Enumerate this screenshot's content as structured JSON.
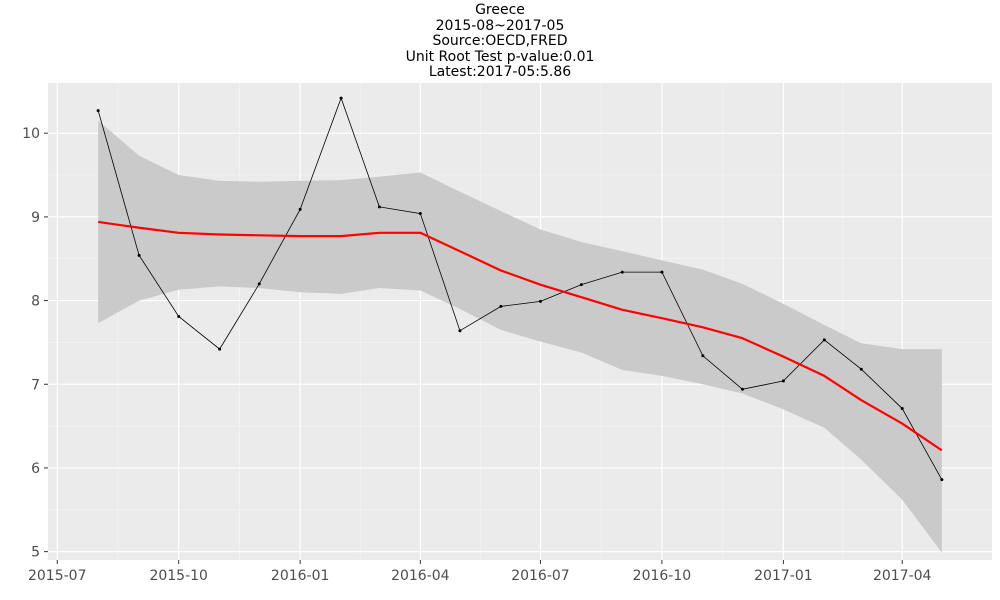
{
  "chart_data": {
    "type": "line",
    "title_lines": [
      "Greece",
      "2015-08~2017-05",
      "Source:OECD,FRED",
      "Unit Root Test p-value:0.01",
      "Latest:2017-05:5.86"
    ],
    "xlabel": "",
    "ylabel": "",
    "x_ticks": [
      "2015-07",
      "2015-10",
      "2016-01",
      "2016-04",
      "2016-07",
      "2016-10",
      "2017-01",
      "2017-04"
    ],
    "y_ticks": [
      5,
      6,
      7,
      8,
      9,
      10
    ],
    "xlim": [
      "2015-06-24",
      "2017-06-08"
    ],
    "ylim": [
      4.9,
      10.6
    ],
    "grid": true,
    "series": [
      {
        "kind": "observed",
        "color": "#000000",
        "points": [
          {
            "x": "2015-08-01",
            "y": 10.27
          },
          {
            "x": "2015-09-01",
            "y": 8.54
          },
          {
            "x": "2015-10-01",
            "y": 7.81
          },
          {
            "x": "2015-11-01",
            "y": 7.42
          },
          {
            "x": "2015-12-01",
            "y": 8.2
          },
          {
            "x": "2016-01-01",
            "y": 9.09
          },
          {
            "x": "2016-02-01",
            "y": 10.42
          },
          {
            "x": "2016-03-01",
            "y": 9.12
          },
          {
            "x": "2016-04-01",
            "y": 9.04
          },
          {
            "x": "2016-05-01",
            "y": 7.64
          },
          {
            "x": "2016-06-01",
            "y": 7.93
          },
          {
            "x": "2016-07-01",
            "y": 7.99
          },
          {
            "x": "2016-08-01",
            "y": 8.19
          },
          {
            "x": "2016-09-01",
            "y": 8.34
          },
          {
            "x": "2016-10-01",
            "y": 8.34
          },
          {
            "x": "2016-11-01",
            "y": 7.34
          },
          {
            "x": "2016-12-01",
            "y": 6.94
          },
          {
            "x": "2017-01-01",
            "y": 7.04
          },
          {
            "x": "2017-02-01",
            "y": 7.53
          },
          {
            "x": "2017-03-01",
            "y": 7.18
          },
          {
            "x": "2017-04-01",
            "y": 6.71
          },
          {
            "x": "2017-05-01",
            "y": 5.86
          }
        ]
      },
      {
        "kind": "smooth",
        "color": "#ff0000",
        "points": [
          {
            "x": "2015-08-01",
            "y": 8.94,
            "lower": 7.73,
            "upper": 10.15
          },
          {
            "x": "2015-09-01",
            "y": 8.87,
            "lower": 8.0,
            "upper": 9.73
          },
          {
            "x": "2015-10-01",
            "y": 8.81,
            "lower": 8.13,
            "upper": 9.5
          },
          {
            "x": "2015-11-01",
            "y": 8.79,
            "lower": 8.17,
            "upper": 9.43
          },
          {
            "x": "2015-12-01",
            "y": 8.78,
            "lower": 8.15,
            "upper": 9.42
          },
          {
            "x": "2016-01-01",
            "y": 8.77,
            "lower": 8.1,
            "upper": 9.43
          },
          {
            "x": "2016-02-01",
            "y": 8.77,
            "lower": 8.08,
            "upper": 9.44
          },
          {
            "x": "2016-03-01",
            "y": 8.81,
            "lower": 8.15,
            "upper": 9.48
          },
          {
            "x": "2016-04-01",
            "y": 8.81,
            "lower": 8.12,
            "upper": 9.53
          },
          {
            "x": "2016-05-01",
            "y": 8.59,
            "lower": 7.9,
            "upper": 9.3
          },
          {
            "x": "2016-06-01",
            "y": 8.36,
            "lower": 7.65,
            "upper": 9.07
          },
          {
            "x": "2016-07-01",
            "y": 8.19,
            "lower": 7.51,
            "upper": 8.85
          },
          {
            "x": "2016-08-01",
            "y": 8.04,
            "lower": 7.38,
            "upper": 8.7
          },
          {
            "x": "2016-09-01",
            "y": 7.89,
            "lower": 7.17,
            "upper": 8.59
          },
          {
            "x": "2016-10-01",
            "y": 7.79,
            "lower": 7.1,
            "upper": 8.48
          },
          {
            "x": "2016-11-01",
            "y": 7.68,
            "lower": 7.0,
            "upper": 8.37
          },
          {
            "x": "2016-12-01",
            "y": 7.55,
            "lower": 6.89,
            "upper": 8.2
          },
          {
            "x": "2017-01-01",
            "y": 7.33,
            "lower": 6.7,
            "upper": 7.96
          },
          {
            "x": "2017-02-01",
            "y": 7.1,
            "lower": 6.48,
            "upper": 7.71
          },
          {
            "x": "2017-03-01",
            "y": 6.81,
            "lower": 6.1,
            "upper": 7.49
          },
          {
            "x": "2017-04-01",
            "y": 6.53,
            "lower": 5.62,
            "upper": 7.42
          },
          {
            "x": "2017-05-01",
            "y": 6.21,
            "lower": 4.99,
            "upper": 7.42
          }
        ]
      }
    ],
    "colors": {
      "panel_background": "#ebebeb",
      "grid_major": "#ffffff",
      "grid_minor": "#f5f5f5",
      "ribbon": "#c8c8c8",
      "axis_text": "#4d4d4d"
    }
  }
}
